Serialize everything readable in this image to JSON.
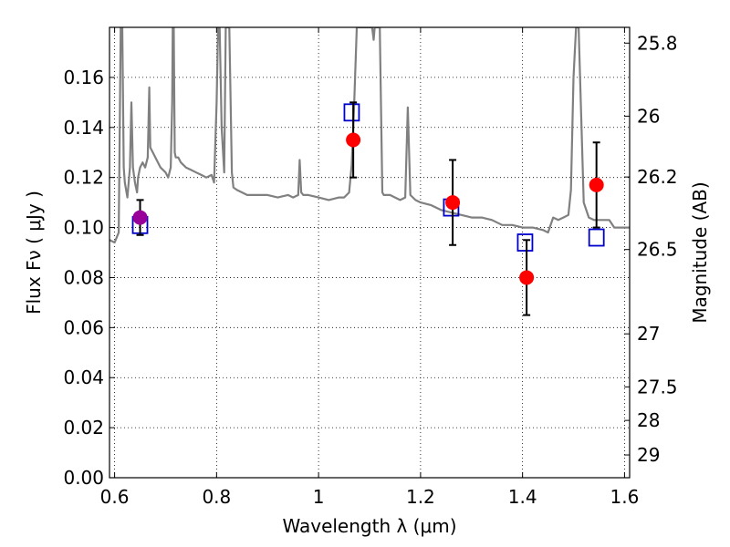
{
  "chart_data": {
    "type": "scatter",
    "xlabel": "Wavelength  λ (μm)",
    "ylabel_left": "Flux  Fν  ( μJy )",
    "ylabel_right": "Magnitude (AB)",
    "xlim": [
      0.59,
      1.61
    ],
    "ylim": [
      0.0,
      0.18
    ],
    "grid": true,
    "x_ticks": [
      0.6,
      0.8,
      1.0,
      1.2,
      1.4,
      1.6
    ],
    "x_tick_labels": [
      "0.6",
      "0.8",
      "1",
      "1.2",
      "1.4",
      "1.6"
    ],
    "y_ticks": [
      0.0,
      0.02,
      0.04,
      0.06,
      0.08,
      0.1,
      0.12,
      0.14,
      0.16
    ],
    "y_tick_labels": [
      "0.00",
      "0.02",
      "0.04",
      "0.06",
      "0.08",
      "0.10",
      "0.12",
      "0.14",
      "0.16"
    ],
    "right_ticks": [
      {
        "label": "25.8",
        "flux": 0.1737
      },
      {
        "label": "26",
        "flux": 0.1445
      },
      {
        "label": "26.2",
        "flux": 0.1202
      },
      {
        "label": "26.5",
        "flux": 0.0912
      },
      {
        "label": "27",
        "flux": 0.0575
      },
      {
        "label": "27.5",
        "flux": 0.0363
      },
      {
        "label": "28",
        "flux": 0.0229
      },
      {
        "label": "29",
        "flux": 0.0091
      }
    ],
    "series": [
      {
        "kind": "model_spectrum",
        "color": "#808080",
        "x": [
          0.59,
          0.6,
          0.608,
          0.612,
          0.615,
          0.618,
          0.62,
          0.625,
          0.63,
          0.633,
          0.636,
          0.64,
          0.644,
          0.646,
          0.65,
          0.655,
          0.66,
          0.665,
          0.668,
          0.67,
          0.675,
          0.68,
          0.69,
          0.7,
          0.705,
          0.71,
          0.713,
          0.714,
          0.716,
          0.718,
          0.72,
          0.725,
          0.73,
          0.74,
          0.75,
          0.76,
          0.77,
          0.78,
          0.79,
          0.795,
          0.8,
          0.803,
          0.806,
          0.81,
          0.815,
          0.818,
          0.82,
          0.822,
          0.825,
          0.83,
          0.833,
          0.84,
          0.86,
          0.88,
          0.9,
          0.92,
          0.94,
          0.95,
          0.96,
          0.963,
          0.966,
          0.97,
          0.98,
          1.0,
          1.02,
          1.04,
          1.05,
          1.06,
          1.065,
          1.07,
          1.075,
          1.08,
          1.1,
          1.105,
          1.108,
          1.11,
          1.115,
          1.12,
          1.125,
          1.128,
          1.14,
          1.15,
          1.16,
          1.17,
          1.175,
          1.18,
          1.19,
          1.2,
          1.22,
          1.24,
          1.26,
          1.28,
          1.3,
          1.32,
          1.34,
          1.36,
          1.38,
          1.4,
          1.42,
          1.44,
          1.45,
          1.46,
          1.47,
          1.48,
          1.49,
          1.495,
          1.5,
          1.505,
          1.51,
          1.52,
          1.53,
          1.54,
          1.56,
          1.57,
          1.58,
          1.6,
          1.61
        ],
        "y": [
          0.095,
          0.094,
          0.098,
          0.18,
          0.18,
          0.124,
          0.118,
          0.112,
          0.124,
          0.15,
          0.124,
          0.118,
          0.114,
          0.12,
          0.124,
          0.126,
          0.124,
          0.128,
          0.156,
          0.132,
          0.13,
          0.128,
          0.124,
          0.122,
          0.12,
          0.124,
          0.15,
          0.18,
          0.18,
          0.13,
          0.128,
          0.128,
          0.126,
          0.124,
          0.123,
          0.122,
          0.121,
          0.12,
          0.121,
          0.118,
          0.15,
          0.18,
          0.18,
          0.14,
          0.122,
          0.18,
          0.18,
          0.18,
          0.18,
          0.122,
          0.116,
          0.115,
          0.113,
          0.113,
          0.113,
          0.112,
          0.113,
          0.112,
          0.113,
          0.127,
          0.114,
          0.113,
          0.113,
          0.112,
          0.111,
          0.112,
          0.112,
          0.114,
          0.125,
          0.15,
          0.18,
          0.18,
          0.18,
          0.18,
          0.175,
          0.18,
          0.18,
          0.18,
          0.114,
          0.113,
          0.113,
          0.112,
          0.111,
          0.112,
          0.148,
          0.113,
          0.111,
          0.11,
          0.109,
          0.107,
          0.106,
          0.105,
          0.104,
          0.104,
          0.103,
          0.101,
          0.101,
          0.1,
          0.1,
          0.099,
          0.098,
          0.104,
          0.103,
          0.104,
          0.105,
          0.115,
          0.16,
          0.18,
          0.18,
          0.11,
          0.104,
          0.103,
          0.103,
          0.103,
          0.1,
          0.1,
          0.1
        ]
      },
      {
        "kind": "model_photometry",
        "marker": "open_square",
        "color": "#0000cc",
        "x": [
          0.65,
          1.065,
          1.26,
          1.405,
          1.545
        ],
        "y": [
          0.101,
          0.146,
          0.108,
          0.094,
          0.096
        ]
      },
      {
        "kind": "observed_photometry",
        "marker": "filled_circle",
        "color": "#ff0000",
        "x": [
          1.068,
          1.263,
          1.408,
          1.545
        ],
        "y": [
          0.135,
          0.11,
          0.08,
          0.117
        ],
        "yerr": [
          0.015,
          0.017,
          0.015,
          0.017
        ]
      },
      {
        "kind": "observed_photometry_optical",
        "marker": "filled_circle",
        "color": "#990099",
        "x": [
          0.65
        ],
        "y": [
          0.104
        ],
        "yerr": [
          0.007
        ]
      }
    ]
  }
}
